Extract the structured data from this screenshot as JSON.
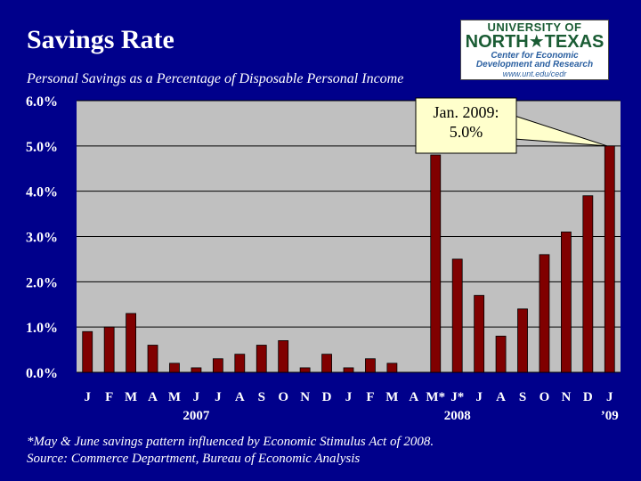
{
  "title": "Savings Rate",
  "subtitle": "Personal Savings as a Percentage of Disposable Personal Income",
  "logo": {
    "line1": "UNIVERSITY OF",
    "line2": "NORTH★TEXAS",
    "line3": "Center for Economic",
    "line4": "Development and Research",
    "line5": "www.unt.edu/cedr"
  },
  "callout": {
    "line1": "Jan. 2009:",
    "line2": "5.0%"
  },
  "footnotes": {
    "note": "*May & June savings pattern influenced by Economic Stimulus Act of 2008.",
    "source": "Source: Commerce Department, Bureau of Economic Analysis"
  },
  "colors": {
    "background": "#00008b",
    "plot_area": "#c0c0c0",
    "bar": "#800000",
    "callout_fill": "#ffffcc"
  },
  "chart_data": {
    "type": "bar",
    "title": "Savings Rate",
    "ylabel": "",
    "ylim": [
      0,
      6
    ],
    "yticks": [
      "0.0%",
      "1.0%",
      "2.0%",
      "3.0%",
      "4.0%",
      "5.0%",
      "6.0%"
    ],
    "grid": true,
    "categories": [
      "J",
      "F",
      "M",
      "A",
      "M",
      "J",
      "J",
      "A",
      "S",
      "O",
      "N",
      "D",
      "J",
      "F",
      "M",
      "A",
      "M*",
      "J*",
      "J",
      "A",
      "S",
      "O",
      "N",
      "D",
      "J"
    ],
    "values": [
      0.9,
      1.0,
      1.3,
      0.6,
      0.2,
      0.1,
      0.3,
      0.4,
      0.6,
      0.7,
      0.1,
      0.4,
      0.1,
      0.3,
      0.2,
      0.0,
      4.8,
      2.5,
      1.7,
      0.8,
      1.4,
      2.6,
      3.1,
      3.9,
      5.0
    ],
    "year_labels": [
      {
        "label": "2007",
        "category_index": 5
      },
      {
        "label": "2008",
        "category_index": 17
      },
      {
        "label": "’09",
        "category_index": 24
      }
    ],
    "annotation": {
      "text": "Jan. 2009: 5.0%",
      "category_index": 24
    }
  }
}
